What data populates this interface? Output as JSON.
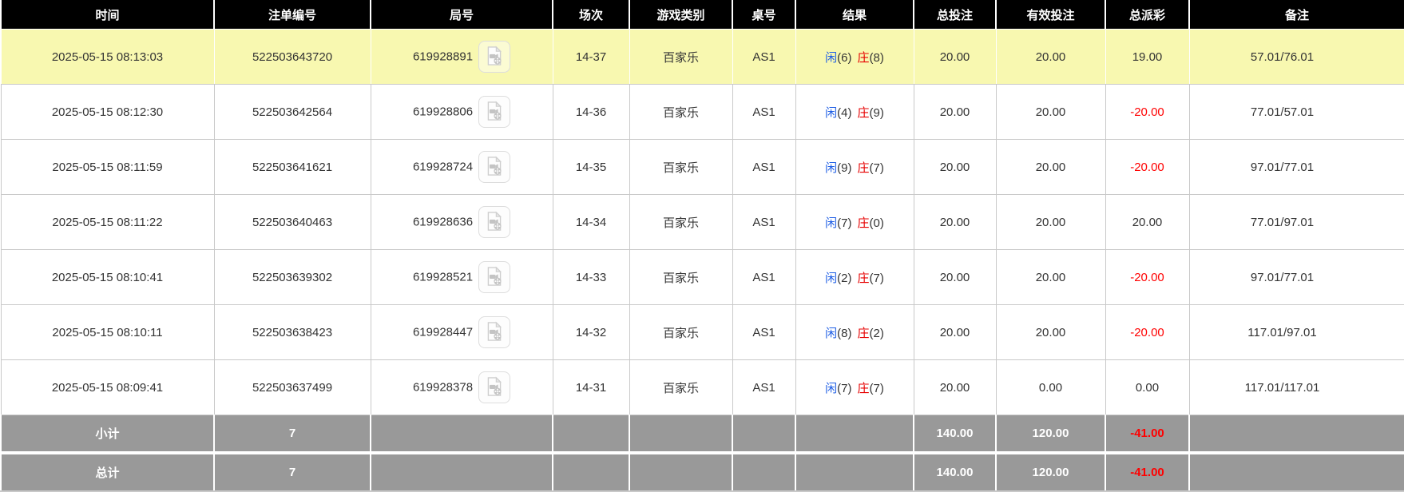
{
  "colors": {
    "header_bg": "#000000",
    "header_text": "#ffffff",
    "highlight_row_bg": "#f8f8b0",
    "summary_row_bg": "#999999",
    "link_blue": "#1e5ee5",
    "banker_red": "#e60000",
    "negative_red": "#ff0000",
    "body_text": "#333333",
    "grid_line": "#c9c9c9"
  },
  "table": {
    "columns": [
      {
        "id": "time",
        "label": "时间"
      },
      {
        "id": "order-id",
        "label": "注单编号"
      },
      {
        "id": "game-id",
        "label": "局号"
      },
      {
        "id": "session",
        "label": "场次"
      },
      {
        "id": "game-type",
        "label": "游戏类别"
      },
      {
        "id": "table-id",
        "label": "桌号"
      },
      {
        "id": "result",
        "label": "结果"
      },
      {
        "id": "total-bet",
        "label": "总投注"
      },
      {
        "id": "valid-bet",
        "label": "有效投注"
      },
      {
        "id": "payout",
        "label": "总派彩"
      },
      {
        "id": "remark",
        "label": "备注"
      }
    ],
    "video_icon": "video-icon",
    "rows": [
      {
        "time": "2025-05-15 08:13:03",
        "order_id": "522503643720",
        "game_id": "619928891",
        "session": "14-37",
        "game_type": "百家乐",
        "table_id": "AS1",
        "result": {
          "player": "闲",
          "player_pts": "(6)",
          "banker": "庄",
          "banker_pts": "(8)"
        },
        "total_bet": "20.00",
        "valid_bet": "20.00",
        "payout": "19.00",
        "remark": "57.01/76.01",
        "highlighted": true
      },
      {
        "time": "2025-05-15 08:12:30",
        "order_id": "522503642564",
        "game_id": "619928806",
        "session": "14-36",
        "game_type": "百家乐",
        "table_id": "AS1",
        "result": {
          "player": "闲",
          "player_pts": "(4)",
          "banker": "庄",
          "banker_pts": "(9)"
        },
        "total_bet": "20.00",
        "valid_bet": "20.00",
        "payout": "-20.00",
        "remark": "77.01/57.01",
        "highlighted": false
      },
      {
        "time": "2025-05-15 08:11:59",
        "order_id": "522503641621",
        "game_id": "619928724",
        "session": "14-35",
        "game_type": "百家乐",
        "table_id": "AS1",
        "result": {
          "player": "闲",
          "player_pts": "(9)",
          "banker": "庄",
          "banker_pts": "(7)"
        },
        "total_bet": "20.00",
        "valid_bet": "20.00",
        "payout": "-20.00",
        "remark": "97.01/77.01",
        "highlighted": false
      },
      {
        "time": "2025-05-15 08:11:22",
        "order_id": "522503640463",
        "game_id": "619928636",
        "session": "14-34",
        "game_type": "百家乐",
        "table_id": "AS1",
        "result": {
          "player": "闲",
          "player_pts": "(7)",
          "banker": "庄",
          "banker_pts": "(0)"
        },
        "total_bet": "20.00",
        "valid_bet": "20.00",
        "payout": "20.00",
        "remark": "77.01/97.01",
        "highlighted": false
      },
      {
        "time": "2025-05-15 08:10:41",
        "order_id": "522503639302",
        "game_id": "619928521",
        "session": "14-33",
        "game_type": "百家乐",
        "table_id": "AS1",
        "result": {
          "player": "闲",
          "player_pts": "(2)",
          "banker": "庄",
          "banker_pts": "(7)"
        },
        "total_bet": "20.00",
        "valid_bet": "20.00",
        "payout": "-20.00",
        "remark": "97.01/77.01",
        "highlighted": false
      },
      {
        "time": "2025-05-15 08:10:11",
        "order_id": "522503638423",
        "game_id": "619928447",
        "session": "14-32",
        "game_type": "百家乐",
        "table_id": "AS1",
        "result": {
          "player": "闲",
          "player_pts": "(8)",
          "banker": "庄",
          "banker_pts": "(2)"
        },
        "total_bet": "20.00",
        "valid_bet": "20.00",
        "payout": "-20.00",
        "remark": "117.01/97.01",
        "highlighted": false
      },
      {
        "time": "2025-05-15 08:09:41",
        "order_id": "522503637499",
        "game_id": "619928378",
        "session": "14-31",
        "game_type": "百家乐",
        "table_id": "AS1",
        "result": {
          "player": "闲",
          "player_pts": "(7)",
          "banker": "庄",
          "banker_pts": "(7)"
        },
        "total_bet": "20.00",
        "valid_bet": "0.00",
        "payout": "0.00",
        "remark": "117.01/117.01",
        "highlighted": false
      }
    ],
    "subtotal": {
      "label": "小计",
      "count": "7",
      "total_bet": "140.00",
      "valid_bet": "120.00",
      "payout": "-41.00",
      "remark": ""
    },
    "total": {
      "label": "总计",
      "count": "7",
      "total_bet": "140.00",
      "valid_bet": "120.00",
      "payout": "-41.00",
      "remark": ""
    }
  }
}
